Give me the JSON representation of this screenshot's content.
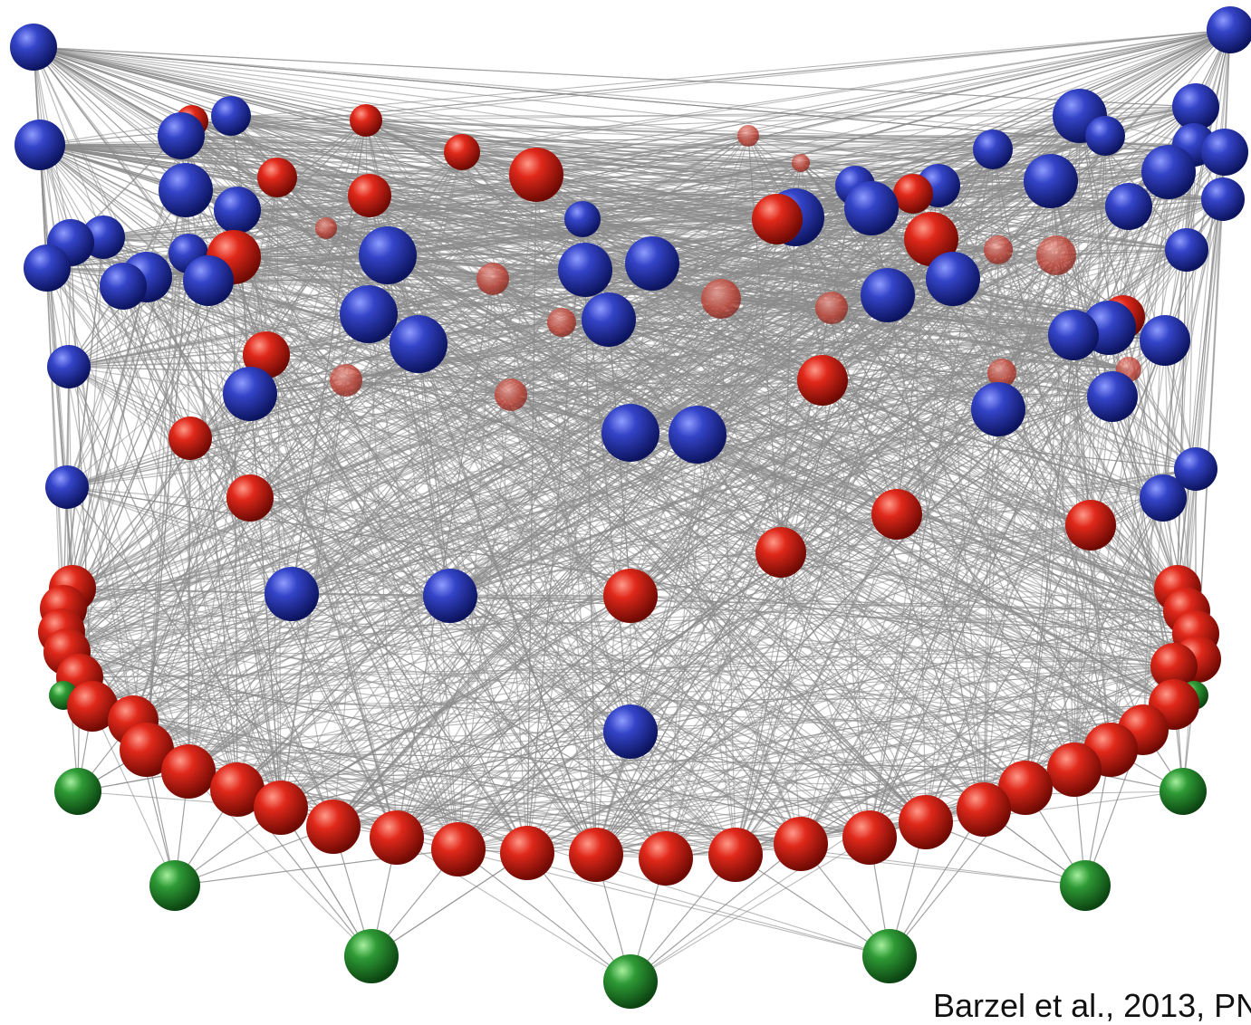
{
  "caption": "Barzel et al., 2013, PN",
  "node_colors": {
    "blue": "#1f2ea8",
    "red": "#d21f12",
    "green": "#1f8a2e",
    "edge": "#8a8a8a"
  }
}
